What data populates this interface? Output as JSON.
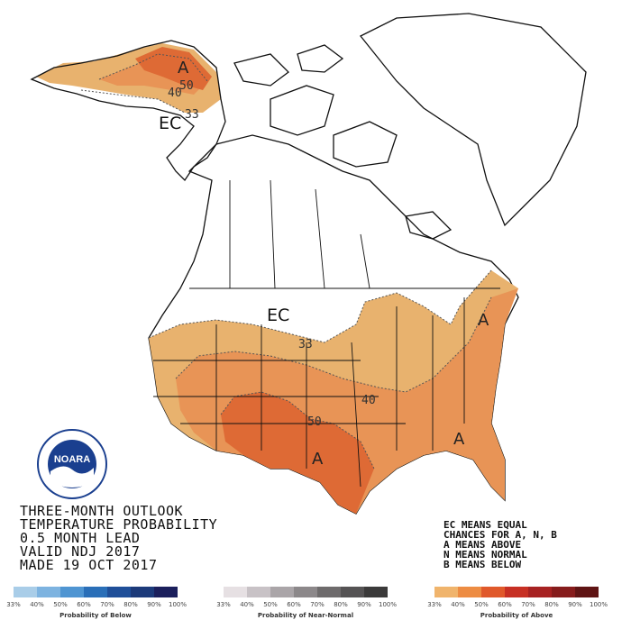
{
  "map": {
    "labels": {
      "ec_alaska": "EC",
      "ec_conus": "EC",
      "a_alaska": "A",
      "a_northeast": "A",
      "a_southeast": "A",
      "a_southwest": "A",
      "c50_alaska": "50",
      "c40_alaska": "40",
      "c33_alaska": "33",
      "c33_plains": "33",
      "c40_central": "40",
      "c50_south": "50"
    }
  },
  "info": {
    "line1": "THREE-MONTH OUTLOOK",
    "line2": "TEMPERATURE PROBABILITY",
    "line3": "0.5 MONTH LEAD",
    "line4": "VALID NDJ 2017",
    "line5": "MADE 19 OCT 2017"
  },
  "notes": {
    "line1": "EC MEANS EQUAL",
    "line2": "CHANCES FOR A, N, B",
    "line3": "A MEANS ABOVE",
    "line4": "N MEANS NORMAL",
    "line5": "B MEANS BELOW"
  },
  "logo": {
    "text": "NOARA"
  },
  "legend": {
    "below": {
      "title": "Probability of Below",
      "ticks": [
        "33%",
        "40%",
        "50%",
        "60%",
        "70%",
        "80%",
        "90%",
        "100%"
      ],
      "colors": [
        "#a9cde8",
        "#7db3e0",
        "#4f95d2",
        "#2a6fb8",
        "#1f4f99",
        "#1c3a7a",
        "#1b1f5c"
      ]
    },
    "normal": {
      "title": "Probability of Near-Normal",
      "ticks": [
        "33%",
        "40%",
        "50%",
        "60%",
        "70%",
        "80%",
        "90%",
        "100%"
      ],
      "colors": [
        "#e6e0e3",
        "#c8c2c6",
        "#aaa5a8",
        "#8c888a",
        "#6e6b6c",
        "#555354",
        "#3b3a3a"
      ]
    },
    "above": {
      "title": "Probability of Above",
      "ticks": [
        "33%",
        "40%",
        "50%",
        "60%",
        "70%",
        "80%",
        "90%",
        "100%"
      ],
      "colors": [
        "#f0b46c",
        "#ed8c43",
        "#e0592b",
        "#c73024",
        "#a72222",
        "#861c1c",
        "#5f1414"
      ]
    }
  },
  "colors": {
    "above_33": "#e8b26e",
    "above_40": "#e89456",
    "above_50": "#de6a35",
    "ocean": "#ffffff",
    "land": "#ffffff",
    "border": "#111111"
  }
}
